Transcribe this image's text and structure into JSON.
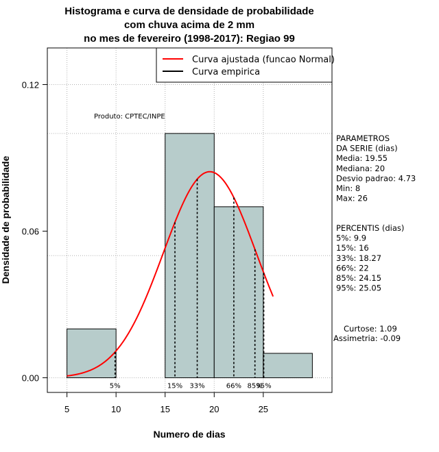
{
  "chart_data": {
    "type": "bar",
    "title_lines": [
      "Histograma e curva de densidade de probabilidade",
      "com chuva acima de 2 mm",
      "no mes de fevereiro (1998-2017): Regiao 99"
    ],
    "xlabel": "Numero de dias",
    "ylabel": "Densidade de probabilidade",
    "xlim": [
      3,
      32
    ],
    "ylim": [
      -0.006,
      0.135
    ],
    "x_ticks": [
      5,
      10,
      15,
      20,
      25
    ],
    "y_ticks": [
      0.0,
      0.06,
      0.12
    ],
    "y_tick_labels": [
      "0.00",
      "0.06",
      "0.12"
    ],
    "grid": true,
    "bins": [
      {
        "from": 5,
        "to": 10,
        "density": 0.02
      },
      {
        "from": 10,
        "to": 15,
        "density": 0.0
      },
      {
        "from": 15,
        "to": 20,
        "density": 0.1
      },
      {
        "from": 20,
        "to": 25,
        "density": 0.07
      },
      {
        "from": 25,
        "to": 30,
        "density": 0.01
      }
    ],
    "fitted_curve": {
      "name": "Curva ajustada (funcao Normal)",
      "mean": 19.55,
      "sd": 4.73,
      "from": 5,
      "to": 26,
      "color": "#ff0000"
    },
    "empirical_curve": {
      "name": "Curva empirica",
      "color": "#000000"
    },
    "percentile_markers": [
      {
        "x": 9.9,
        "label": "5%"
      },
      {
        "x": 16,
        "label": "15%"
      },
      {
        "x": 18.27,
        "label": "33%"
      },
      {
        "x": 22,
        "label": "66%"
      },
      {
        "x": 24.15,
        "label": "85%"
      },
      {
        "x": 25.05,
        "label": "95%"
      }
    ],
    "product_label": "Produto: CPTEC/INPE",
    "bar_color": "#b7cccb",
    "legend_position": "top-right"
  },
  "side_panel": {
    "params_lines": [
      "PARAMETROS",
      "DA SERIE (dias)",
      "  Media: 19.55",
      "  Mediana: 20",
      "  Desvio padrao: 4.73",
      "  Min: 8",
      "  Max: 26"
    ],
    "percentis_lines": [
      "PERCENTIS (dias)",
      "  5%: 9.9",
      "  15%: 16",
      "  33%: 18.27",
      "  66%: 22",
      "  85%: 24.15",
      "  95%: 25.05"
    ],
    "stats_lines": [
      "Curtose: 1.09",
      "Assimetria: -0.09"
    ]
  }
}
